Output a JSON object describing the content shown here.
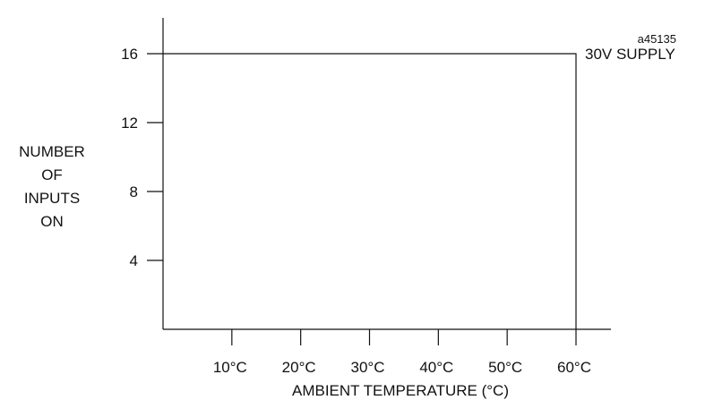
{
  "figure_ref": "a45135",
  "chart_data": {
    "type": "line",
    "title": "",
    "xlabel": "AMBIENT  TEMPERATURE  (°C)",
    "ylabel_lines": [
      "NUMBER",
      "OF",
      "INPUTS",
      "ON"
    ],
    "x_ticks": [
      10,
      20,
      30,
      40,
      50,
      60
    ],
    "x_tick_labels": [
      "10°C",
      "20°C",
      "30°C",
      "40°C",
      "50°C",
      "60°C"
    ],
    "y_ticks": [
      4,
      8,
      12,
      16
    ],
    "y_tick_labels": [
      "4",
      "8",
      "12",
      "16"
    ],
    "xlim": [
      0,
      65
    ],
    "ylim": [
      0,
      16.5
    ],
    "grid": false,
    "legend": "none",
    "series": [
      {
        "name": "30V  SUPPLY",
        "x": [
          0,
          60,
          60
        ],
        "y": [
          16,
          16,
          0
        ]
      }
    ]
  }
}
